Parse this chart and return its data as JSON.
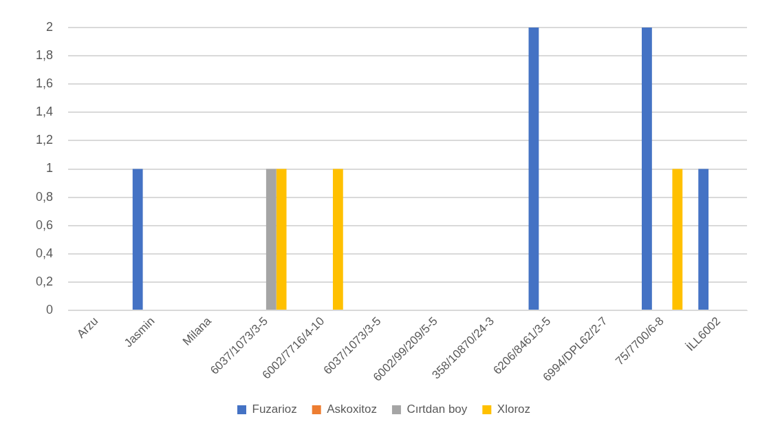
{
  "chart_data": {
    "type": "bar",
    "categories": [
      "Arzu",
      "Jasmin",
      "Milana",
      "6037/1073/3-5",
      "6002/7716/4-10",
      "6037/1073/3-5",
      "6002/99/209/5-5",
      "358/10870/24-3",
      "6206/8461/3-5",
      "6994/DPL62/2-7",
      "75/7700/6-8",
      "İLL6002"
    ],
    "series": [
      {
        "name": "Fuzarioz",
        "color": "#4472c4",
        "values": [
          0,
          1,
          0,
          0,
          0,
          0,
          0,
          0,
          2,
          0,
          2,
          1
        ]
      },
      {
        "name": "Askoxitoz",
        "color": "#ed7d31",
        "values": [
          0,
          0,
          0,
          0,
          0,
          0,
          0,
          0,
          0,
          0,
          0,
          0
        ]
      },
      {
        "name": "Cırtdan boy",
        "color": "#a5a5a5",
        "values": [
          0,
          0,
          0,
          1,
          0,
          0,
          0,
          0,
          0,
          0,
          0,
          0
        ]
      },
      {
        "name": "Xloroz",
        "color": "#ffc000",
        "values": [
          0,
          0,
          0,
          1,
          1,
          0,
          0,
          0,
          0,
          0,
          1,
          0
        ]
      }
    ],
    "ylim": [
      0,
      2
    ],
    "yticks": [
      0,
      {
        "value": 0.2,
        "label": "0,2"
      },
      {
        "value": 0.4,
        "label": "0,4"
      },
      {
        "value": 0.6,
        "label": "0,6"
      },
      {
        "value": 0.8,
        "label": "0,8"
      },
      1,
      {
        "value": 1.2,
        "label": "1,2"
      },
      {
        "value": 1.4,
        "label": "1,4"
      },
      {
        "value": 1.6,
        "label": "1,6"
      },
      {
        "value": 1.8,
        "label": "1,8"
      },
      2
    ],
    "grid": "y",
    "legend": "bottom"
  }
}
